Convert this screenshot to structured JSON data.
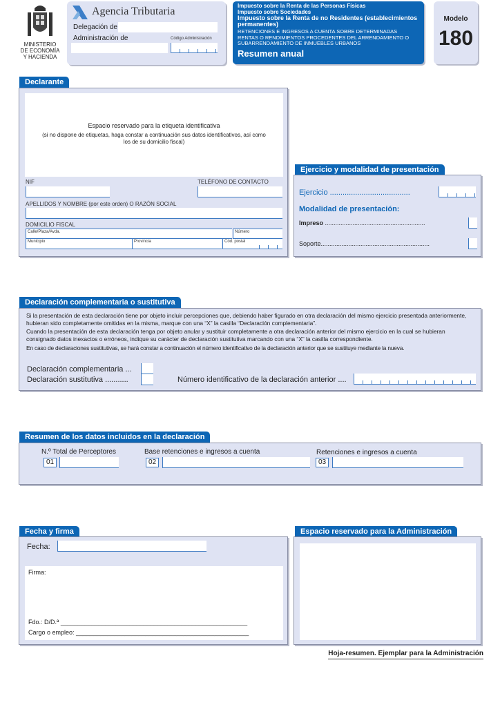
{
  "header": {
    "ministry": [
      "MINISTERIO",
      "DE ECONOMÍA",
      "Y HACIENDA"
    ],
    "agency": "Agencia Tributaria",
    "delegacion_label": "Delegación de",
    "administracion_label": "Administración de",
    "codigo_label": "Código Administración",
    "taxes": [
      "Impuesto sobre la Renta de las Personas Físicas",
      "Impuesto sobre Sociedades",
      "Impuesto sobre la Renta de no Residentes (establecimientos permanentes)"
    ],
    "description": "RETENCIONES E INGRESOS A CUENTA SOBRE DETERMINADAS RENTAS O RENDIMIENTOS PROCEDENTES DEL ARRENDAMIENTO O SUBARRENDAMIENTO DE INMUEBLES URBANOS",
    "resumen": "Resumen anual",
    "modelo_label": "Modelo",
    "modelo_number": "180",
    "accent": "#0d66b5",
    "panel_bg": "#dfe3f3"
  },
  "declarante": {
    "title": "Declarante",
    "label_area_title": "Espacio reservado para la etiqueta identificativa",
    "label_area_note": "(si no dispone de etiquetas, haga constar a continuación sus datos identificativos, así como los de su domicilio fiscal)",
    "nif": "NIF",
    "telefono": "TELÉFONO DE CONTACTO",
    "apellidos": "APELLIDOS Y NOMBRE (por este orden) O RAZÓN SOCIAL",
    "domicilio": "DOMICILIO FISCAL",
    "calle": "Calle/Plaza/Avda.",
    "numero": "Número",
    "municipio": "Municipio",
    "provincia": "Provincia",
    "cp": "Cód. postal"
  },
  "ejercicio": {
    "title": "Ejercicio y modalidad de presentación",
    "ejercicio": "Ejercicio ......................................",
    "modalidad": "Modalidad de presentación:",
    "impreso": "Impreso",
    "impreso_dots": "..........................................................",
    "soporte": "Soporte..............................................................."
  },
  "complementaria": {
    "title": "Declaración complementaria o sustitutiva",
    "p1": "Si la presentación de esta declaración tiene por objeto incluir percepciones que, debiendo haber figurado en otra declaración del mismo ejercicio presentada anteriormente, hubieran sido completamente omitidas en la misma, marque con una “X” la casilla “Declaración complementaria”.",
    "p2": "Cuando la presentación de esta declaración tenga por objeto anular y sustituir completamente a otra declaración anterior del mismo ejercicio en la cual se hubieran consignado datos inexactos o erróneos, indique su carácter de declaración sustitutiva marcando con una “X” la casilla correspondiente.",
    "p3": "En caso de declaraciones sustitutivas, se hará constar a continuación el número identificativo de la declaración anterior que se sustituye mediante la nueva.",
    "comp": "Declaración complementaria ...",
    "sust": "Declaración sustitutiva ...........",
    "numero": "Número identificativo de la declaración anterior ...."
  },
  "resumen": {
    "title": "Resumen de los datos incluidos en la declaración",
    "fields": [
      {
        "label": "N.º Total de Perceptores",
        "code": "01"
      },
      {
        "label": "Base retenciones e ingresos a cuenta",
        "code": "02"
      },
      {
        "label": "Retenciones e ingresos a cuenta",
        "code": "03"
      }
    ]
  },
  "firma": {
    "title": "Fecha y firma",
    "fecha": "Fecha:",
    "firma": "Firma:",
    "fdo": "Fdo.: D/D.ª ______________________________________________________",
    "cargo": "Cargo o empleo: __________________________________________________"
  },
  "admin": {
    "title": "Espacio reservado para la Administración"
  },
  "footer": "Hoja-resumen. Ejemplar para la Administración"
}
